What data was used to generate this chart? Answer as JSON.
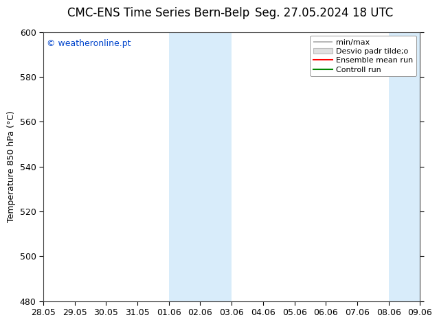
{
  "title_left": "CMC-ENS Time Series Bern-Belp",
  "title_right": "Seg. 27.05.2024 18 UTC",
  "ylabel": "Temperature 850 hPa (°C)",
  "ylim": [
    480,
    600
  ],
  "yticks": [
    480,
    500,
    520,
    540,
    560,
    580,
    600
  ],
  "xtick_labels": [
    "28.05",
    "29.05",
    "30.05",
    "31.05",
    "01.06",
    "02.06",
    "03.06",
    "04.06",
    "05.06",
    "06.06",
    "07.06",
    "08.06",
    "09.06"
  ],
  "watermark": "© weatheronline.pt",
  "watermark_color": "#0044cc",
  "background_color": "#ffffff",
  "shaded_color": "#d8ecfa",
  "shaded_ranges": [
    [
      4,
      6
    ],
    [
      11,
      13
    ]
  ],
  "legend_labels": [
    "min/max",
    "Desvio padr tilde;o",
    "Ensemble mean run",
    "Controll run"
  ],
  "legend_colors_line": [
    "#aaaaaa",
    "#cccccc",
    "#ff0000",
    "#008800"
  ],
  "title_fontsize": 12,
  "tick_fontsize": 9,
  "ylabel_fontsize": 9,
  "legend_fontsize": 8
}
